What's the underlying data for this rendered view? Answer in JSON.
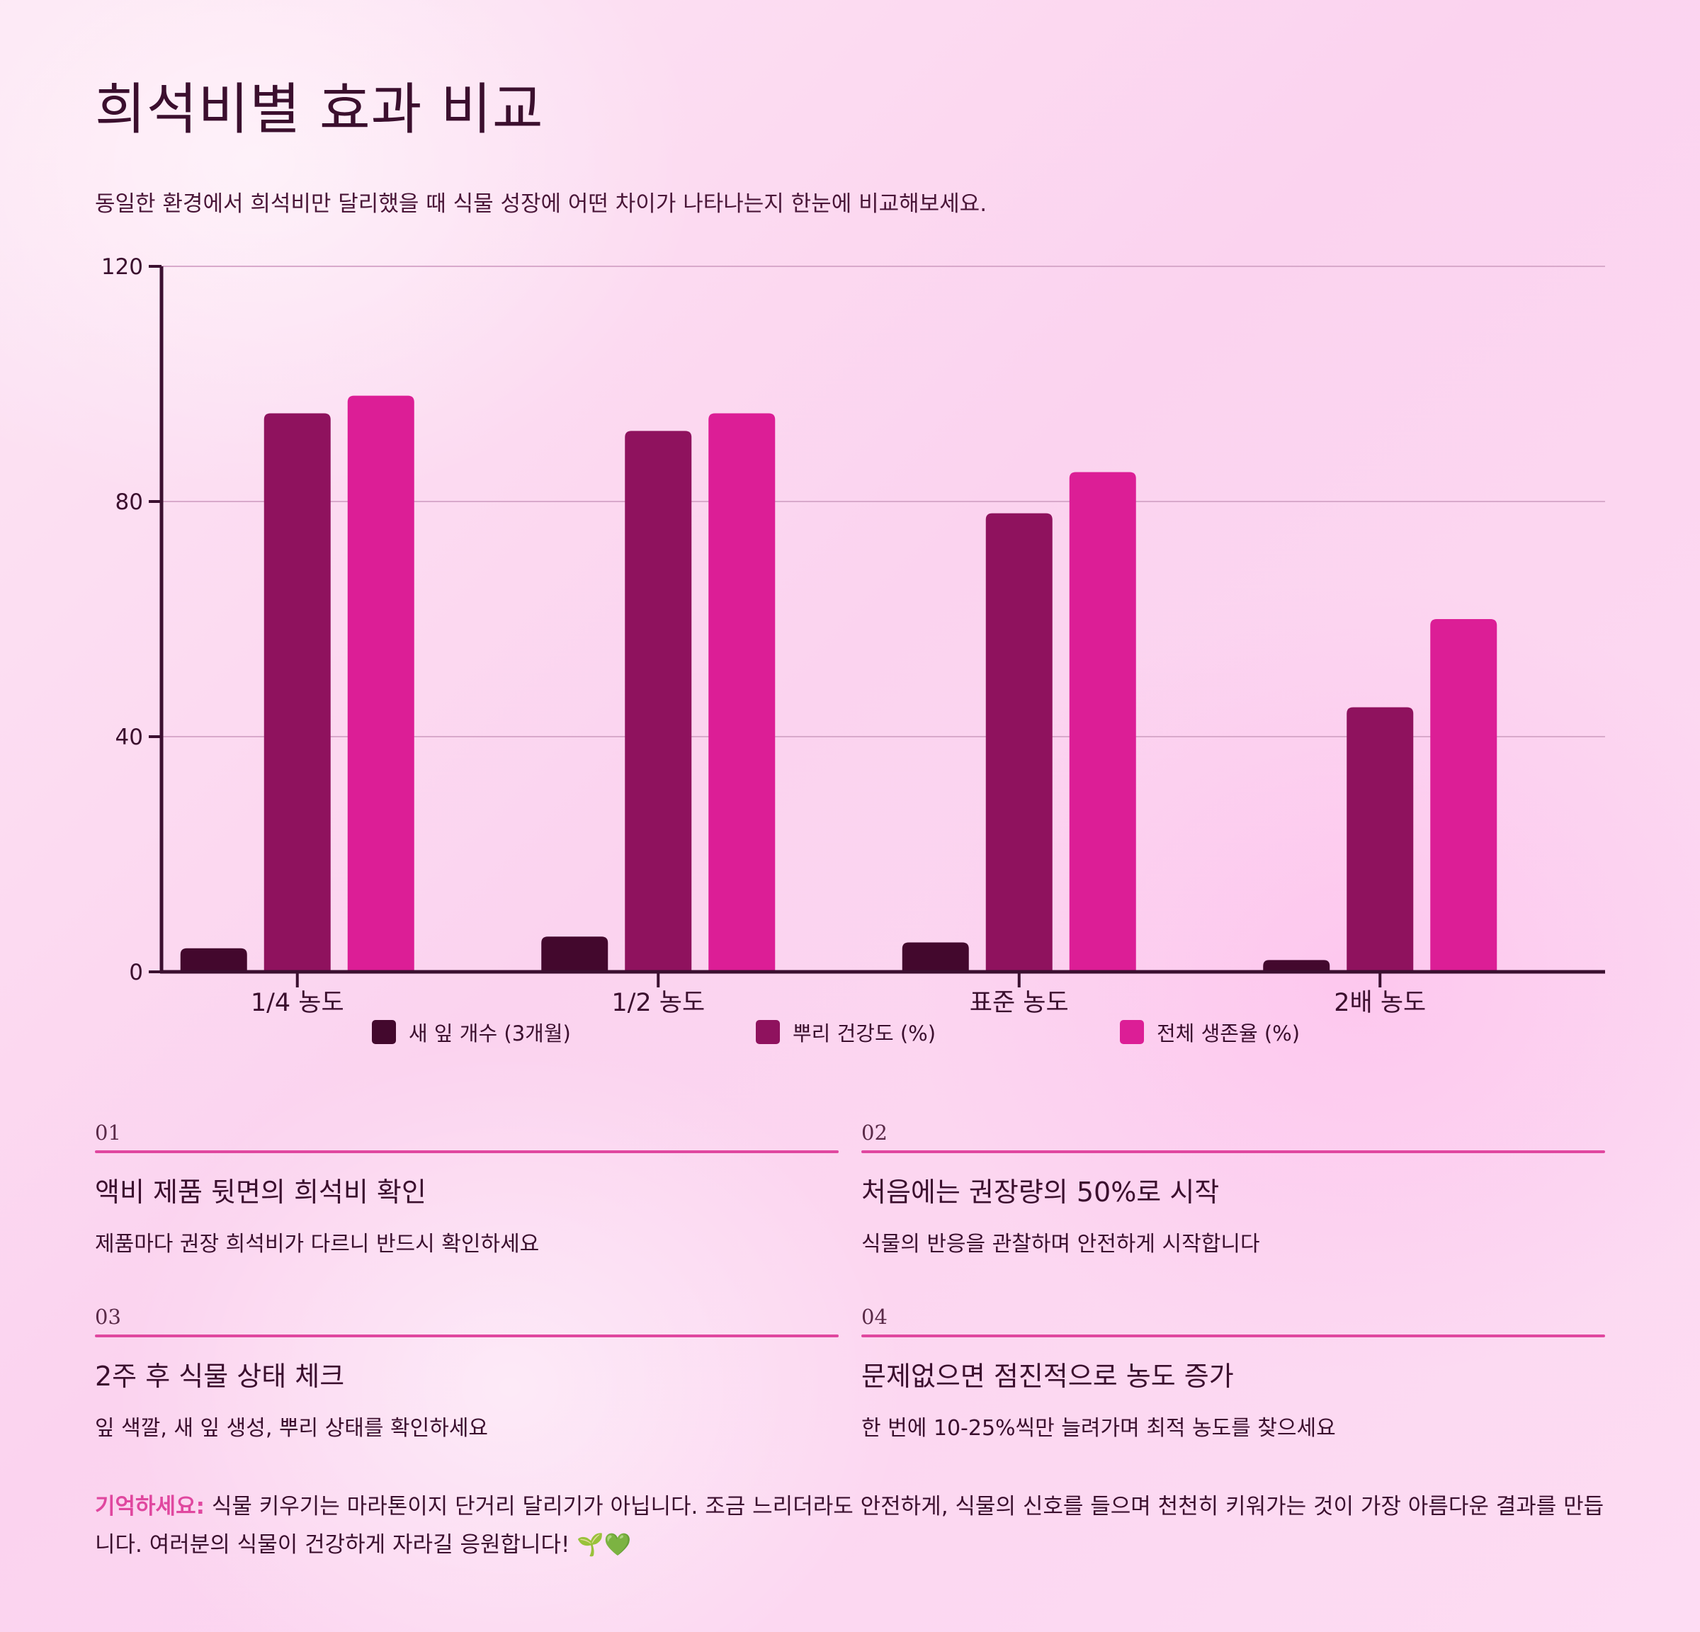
{
  "page": {
    "title": "희석비별 효과 비교",
    "subtitle": "동일한 환경에서 희석비만 달리했을 때 식물 성장에 어떤 차이가 나타나는지 한눈에 비교해보세요."
  },
  "chart_data": {
    "type": "bar",
    "title": "",
    "xlabel": "",
    "ylabel": "",
    "categories": [
      "1/4 농도",
      "1/2 농도",
      "표준 농도",
      "2배 농도"
    ],
    "series": [
      {
        "name": "새 잎 개수 (3개월)",
        "values": [
          4,
          6,
          5,
          2
        ],
        "color": "#43082d"
      },
      {
        "name": "뿌리 건강도 (%)",
        "values": [
          95,
          92,
          78,
          45
        ],
        "color": "#8f125e"
      },
      {
        "name": "전체 생존율 (%)",
        "values": [
          98,
          95,
          85,
          60
        ],
        "color": "#dc1e96"
      }
    ],
    "ylim": [
      0,
      120
    ],
    "yticks": [
      0,
      40,
      80,
      120
    ],
    "grid": true,
    "legend": "bottom",
    "axis_color": "#3b1030",
    "grid_color": "#d8a9cb"
  },
  "cards": [
    {
      "num": "01",
      "title": "액비 제품 뒷면의 희석비 확인",
      "desc": "제품마다 권장 희석비가 다르니 반드시 확인하세요"
    },
    {
      "num": "02",
      "title": "처음에는 권장량의 50%로 시작",
      "desc": "식물의 반응을 관찰하며 안전하게 시작합니다"
    },
    {
      "num": "03",
      "title": "2주 후 식물 상태 체크",
      "desc": "잎 색깔, 새 잎 생성, 뿌리 상태를 확인하세요"
    },
    {
      "num": "04",
      "title": "문제없으면 점진적으로 농도 증가",
      "desc": "한 번에 10-25%씩만 늘려가며 최적 농도를 찾으세요"
    }
  ],
  "note": {
    "label": "기억하세요:",
    "text": " 식물 키우기는 마라톤이지 단거리 달리기가 아닙니다. 조금 느리더라도 안전하게, 식물의 신호를 들으며 천천히 키워가는 것이 가장 아름다운 결과를 만듭니다. 여러분의 식물이 건강하게 자라길 응원합니다! 🌱💚"
  }
}
